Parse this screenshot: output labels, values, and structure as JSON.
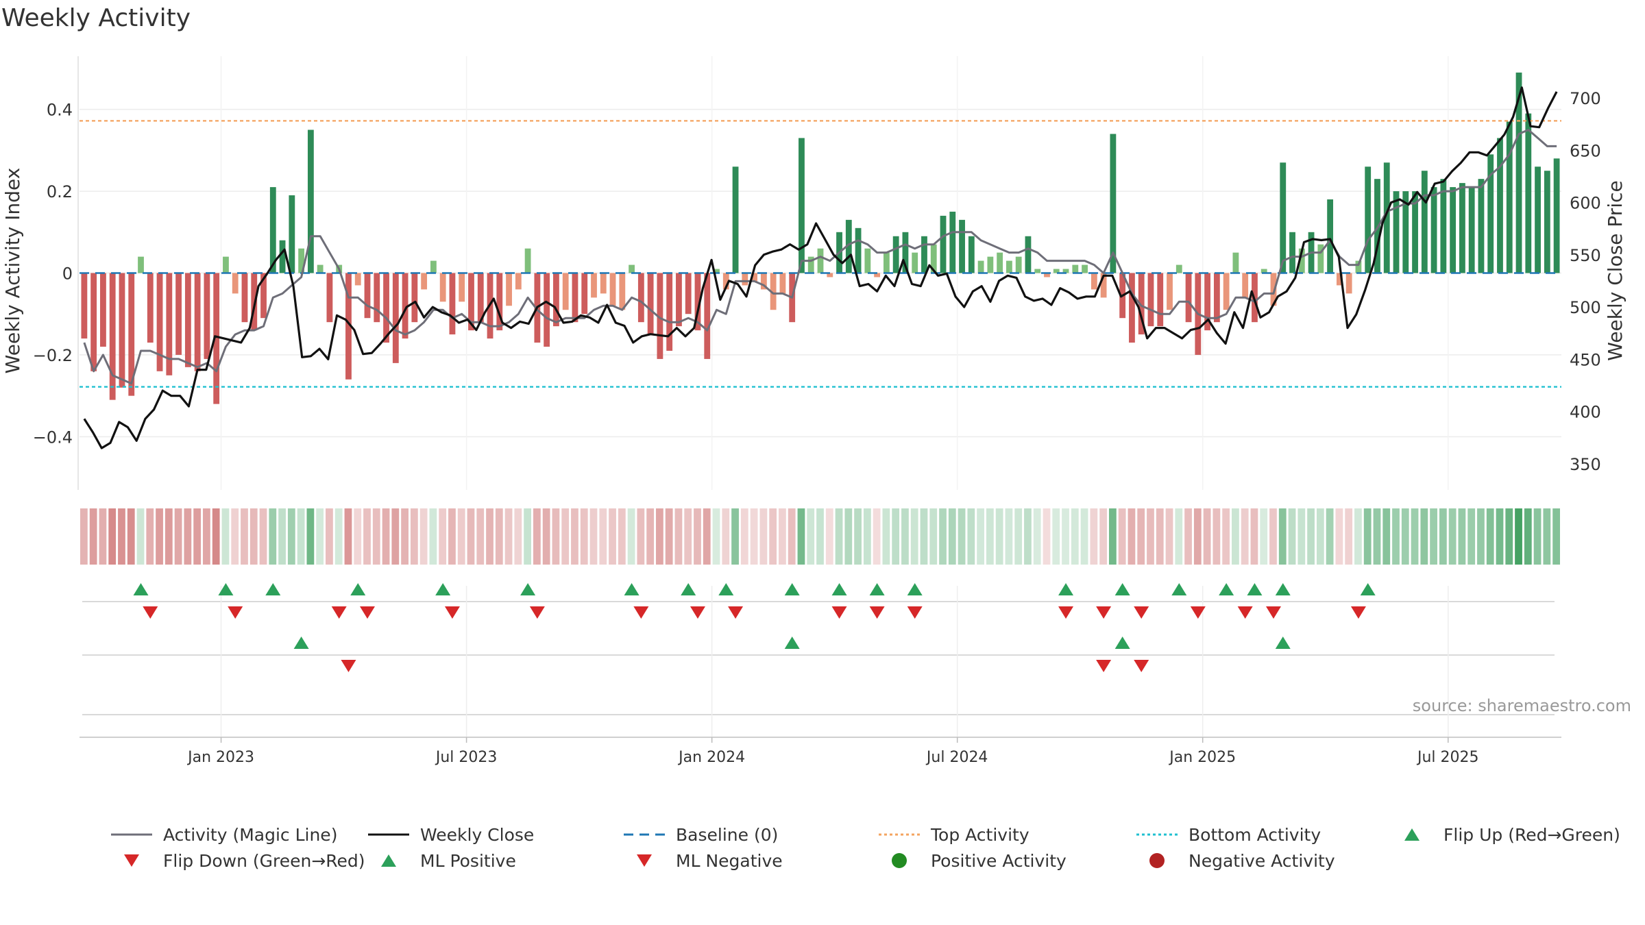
{
  "chart_data": {
    "type": "bar",
    "title": "Weekly Activity",
    "source": "source: sharemaestro.com",
    "ylabel_left": "Weekly Activity Index",
    "ylabel_right": "Weekly Close Price",
    "xlabel": "",
    "ylim_left": [
      -0.53,
      0.53
    ],
    "ylim_right": [
      325,
      740
    ],
    "yticks_left": [
      {
        "value": 0.4,
        "label": "0.4"
      },
      {
        "value": 0.2,
        "label": "0.2"
      },
      {
        "value": 0,
        "label": "0"
      },
      {
        "value": -0.2,
        "label": "−0.2"
      },
      {
        "value": -0.4,
        "label": "−0.4"
      }
    ],
    "yticks_right": [
      {
        "value": 700,
        "label": "700"
      },
      {
        "value": 650,
        "label": "650"
      },
      {
        "value": 600,
        "label": "600"
      },
      {
        "value": 550,
        "label": "550"
      },
      {
        "value": 500,
        "label": "500"
      },
      {
        "value": 450,
        "label": "450"
      },
      {
        "value": 400,
        "label": "400"
      },
      {
        "value": 350,
        "label": "350"
      }
    ],
    "x_range": [
      0,
      157
    ],
    "xticks": [
      {
        "week": 15,
        "label": "Jan 2023"
      },
      {
        "week": 41,
        "label": "Jul 2023"
      },
      {
        "week": 67,
        "label": "Jan 2024"
      },
      {
        "week": 93,
        "label": "Jul 2024"
      },
      {
        "week": 119,
        "label": "Jan 2025"
      },
      {
        "week": 145,
        "label": "Jul 2025"
      }
    ],
    "top_activity": 0.372,
    "bottom_activity": -0.278,
    "baseline": 0,
    "colors": {
      "pos_strong": "#2e8b57",
      "pos_weak": "#7fbf7b",
      "neg_strong": "#cd5c5c",
      "neg_weak": "#e9967a",
      "magic_line": "#6e6e78",
      "close_line": "#111111",
      "baseline": "#1f77b4",
      "top": "#f4a460",
      "bottom": "#20c0d0",
      "flip_up": "#2ca05a",
      "flip_down": "#d62728",
      "pos_dot": "#228b22",
      "neg_dot": "#b22222"
    },
    "series": [
      {
        "name": "Activity Index",
        "values": [
          -0.16,
          -0.24,
          -0.18,
          -0.31,
          -0.28,
          -0.3,
          0.04,
          -0.17,
          -0.24,
          -0.25,
          -0.2,
          -0.23,
          -0.24,
          -0.21,
          -0.32,
          0.04,
          -0.05,
          -0.12,
          -0.14,
          -0.11,
          0.21,
          0.08,
          0.19,
          0.06,
          0.35,
          0.02,
          -0.12,
          0.02,
          -0.26,
          -0.03,
          -0.11,
          -0.12,
          -0.17,
          -0.22,
          -0.16,
          -0.12,
          -0.04,
          0.03,
          -0.07,
          -0.15,
          -0.07,
          -0.14,
          -0.12,
          -0.16,
          -0.14,
          -0.08,
          -0.04,
          0.06,
          -0.17,
          -0.18,
          -0.13,
          -0.09,
          -0.12,
          -0.1,
          -0.06,
          -0.05,
          -0.08,
          -0.09,
          0.02,
          -0.12,
          -0.15,
          -0.21,
          -0.19,
          -0.13,
          -0.1,
          -0.14,
          -0.21,
          0.01,
          -0.04,
          0.26,
          -0.03,
          -0.02,
          -0.04,
          -0.09,
          -0.05,
          -0.12,
          0.33,
          0.04,
          0.06,
          -0.01,
          0.1,
          0.13,
          0.11,
          0.06,
          -0.01,
          0.05,
          0.09,
          0.1,
          0.05,
          0.09,
          0.07,
          0.14,
          0.15,
          0.13,
          0.09,
          0.03,
          0.04,
          0.05,
          0.03,
          0.04,
          0.09,
          0.01,
          -0.01,
          0.01,
          0.01,
          0.02,
          0.02,
          -0.04,
          -0.06,
          0.34,
          -0.11,
          -0.17,
          -0.15,
          -0.13,
          -0.13,
          -0.09,
          0.02,
          -0.12,
          -0.2,
          -0.14,
          -0.12,
          -0.09,
          0.05,
          -0.06,
          -0.12,
          0.01,
          -0.08,
          0.27,
          0.1,
          0.06,
          0.1,
          0.07,
          0.18,
          -0.03,
          -0.05,
          0.03,
          0.26,
          0.23,
          0.27,
          0.2,
          0.2,
          0.2,
          0.25,
          0.21,
          0.23,
          0.21,
          0.22,
          0.21,
          0.23,
          0.29,
          0.33,
          0.37,
          0.49,
          0.39,
          0.26,
          0.25,
          0.28
        ]
      },
      {
        "name": "Activity (Magic Line)",
        "values": [
          -0.17,
          -0.24,
          -0.2,
          -0.25,
          -0.26,
          -0.27,
          -0.19,
          -0.19,
          -0.2,
          -0.21,
          -0.21,
          -0.22,
          -0.23,
          -0.22,
          -0.24,
          -0.18,
          -0.15,
          -0.14,
          -0.14,
          -0.13,
          -0.06,
          -0.05,
          -0.03,
          -0.01,
          0.09,
          0.09,
          0.05,
          0.01,
          -0.06,
          -0.06,
          -0.08,
          -0.09,
          -0.11,
          -0.14,
          -0.15,
          -0.14,
          -0.12,
          -0.09,
          -0.09,
          -0.11,
          -0.1,
          -0.12,
          -0.12,
          -0.13,
          -0.13,
          -0.12,
          -0.1,
          -0.06,
          -0.09,
          -0.11,
          -0.12,
          -0.11,
          -0.11,
          -0.11,
          -0.09,
          -0.08,
          -0.08,
          -0.09,
          -0.06,
          -0.07,
          -0.09,
          -0.11,
          -0.12,
          -0.12,
          -0.11,
          -0.12,
          -0.14,
          -0.09,
          -0.1,
          -0.02,
          -0.02,
          -0.02,
          -0.03,
          -0.05,
          -0.05,
          -0.06,
          0.03,
          0.03,
          0.04,
          0.03,
          0.05,
          0.07,
          0.08,
          0.07,
          0.05,
          0.05,
          0.06,
          0.07,
          0.06,
          0.07,
          0.07,
          0.09,
          0.1,
          0.1,
          0.1,
          0.08,
          0.07,
          0.06,
          0.05,
          0.05,
          0.06,
          0.05,
          0.03,
          0.03,
          0.03,
          0.03,
          0.03,
          0.02,
          0.0,
          0.05,
          0.0,
          -0.05,
          -0.08,
          -0.09,
          -0.1,
          -0.1,
          -0.07,
          -0.07,
          -0.1,
          -0.11,
          -0.11,
          -0.1,
          -0.06,
          -0.06,
          -0.07,
          -0.05,
          -0.05,
          0.03,
          0.04,
          0.04,
          0.05,
          0.05,
          0.08,
          0.04,
          0.02,
          0.02,
          0.08,
          0.11,
          0.15,
          0.16,
          0.17,
          0.17,
          0.19,
          0.19,
          0.2,
          0.2,
          0.21,
          0.21,
          0.21,
          0.24,
          0.26,
          0.29,
          0.34,
          0.35,
          0.33,
          0.31,
          0.31
        ]
      },
      {
        "name": "Weekly Close",
        "values": [
          393,
          380,
          365,
          370,
          390,
          385,
          372,
          393,
          402,
          420,
          415,
          415,
          405,
          440,
          440,
          472,
          470,
          468,
          466,
          480,
          520,
          532,
          545,
          555,
          520,
          452,
          453,
          460,
          450,
          492,
          488,
          478,
          455,
          456,
          465,
          475,
          484,
          500,
          505,
          490,
          500,
          495,
          492,
          485,
          488,
          478,
          495,
          508,
          485,
          480,
          486,
          484,
          500,
          505,
          500,
          485,
          486,
          492,
          490,
          485,
          502,
          485,
          482,
          466,
          472,
          474,
          473,
          472,
          480,
          472,
          480,
          518,
          545,
          507,
          525,
          522,
          510,
          540,
          550,
          553,
          555,
          560,
          555,
          560,
          580,
          565,
          550,
          542,
          550,
          520,
          522,
          515,
          530,
          520,
          545,
          522,
          520,
          540,
          530,
          532,
          510,
          500,
          515,
          520,
          505,
          525,
          530,
          528,
          510,
          506,
          508,
          502,
          518,
          514,
          508,
          510,
          510,
          530,
          530,
          510,
          515,
          500,
          470,
          480,
          480,
          475,
          470,
          478,
          480,
          488,
          475,
          465,
          495,
          480,
          515,
          490,
          495,
          510,
          515,
          528,
          562,
          565,
          564,
          565,
          548,
          480,
          493,
          516,
          542,
          580,
          600,
          603,
          598,
          610,
          600,
          618,
          620,
          630,
          638,
          648,
          648,
          645,
          655,
          665,
          682,
          710,
          673,
          672,
          690,
          706
        ]
      }
    ],
    "heat_strip": [
      -0.16,
      -0.24,
      -0.18,
      -0.31,
      -0.28,
      -0.3,
      0.04,
      -0.17,
      -0.24,
      -0.25,
      -0.2,
      -0.23,
      -0.24,
      -0.21,
      -0.32,
      0.04,
      -0.05,
      -0.12,
      -0.14,
      -0.11,
      0.21,
      0.08,
      0.19,
      0.06,
      0.35,
      0.02,
      -0.12,
      0.02,
      -0.26,
      -0.03,
      -0.11,
      -0.12,
      -0.17,
      -0.22,
      -0.16,
      -0.12,
      -0.04,
      0.03,
      -0.07,
      -0.15,
      -0.07,
      -0.14,
      -0.12,
      -0.16,
      -0.14,
      -0.08,
      -0.04,
      0.06,
      -0.17,
      -0.18,
      -0.13,
      -0.09,
      -0.12,
      -0.1,
      -0.06,
      -0.05,
      -0.08,
      -0.09,
      0.02,
      -0.12,
      -0.15,
      -0.21,
      -0.19,
      -0.13,
      -0.1,
      -0.14,
      -0.21,
      0.01,
      -0.04,
      0.26,
      -0.03,
      -0.02,
      -0.04,
      -0.09,
      -0.05,
      -0.12,
      0.33,
      0.04,
      0.06,
      -0.01,
      0.1,
      0.13,
      0.11,
      0.06,
      -0.01,
      0.05,
      0.09,
      0.1,
      0.05,
      0.09,
      0.07,
      0.14,
      0.15,
      0.13,
      0.09,
      0.03,
      0.04,
      0.05,
      0.03,
      0.04,
      0.09,
      0.01,
      -0.01,
      0.01,
      0.01,
      0.02,
      0.02,
      -0.04,
      -0.06,
      0.34,
      -0.11,
      -0.17,
      -0.15,
      -0.13,
      -0.13,
      -0.09,
      0.02,
      -0.12,
      -0.2,
      -0.14,
      -0.12,
      -0.09,
      0.05,
      -0.06,
      -0.12,
      0.01,
      -0.08,
      0.27,
      0.1,
      0.06,
      0.1,
      0.07,
      0.18,
      -0.03,
      -0.05,
      0.03,
      0.26,
      0.23,
      0.27,
      0.2,
      0.2,
      0.2,
      0.25,
      0.21,
      0.23,
      0.21,
      0.22,
      0.21,
      0.23,
      0.29,
      0.33,
      0.37,
      0.49,
      0.39,
      0.26,
      0.25,
      0.28
    ],
    "flip_up_weeks": [
      6,
      15,
      20,
      29,
      38,
      47,
      58,
      64,
      68,
      75,
      80,
      84,
      88,
      104,
      110,
      116,
      121,
      124,
      127,
      136
    ],
    "flip_down_weeks": [
      7,
      16,
      27,
      30,
      39,
      48,
      59,
      65,
      69,
      80,
      84,
      88,
      104,
      108,
      112,
      118,
      123,
      126,
      135
    ],
    "ml_positive_weeks": [
      23,
      75,
      110,
      127
    ],
    "ml_negative_weeks": [
      28,
      108,
      112
    ],
    "legend": [
      {
        "label": "Activity (Magic Line)",
        "marker": "line",
        "color": "#6e6e78"
      },
      {
        "label": "Weekly Close",
        "marker": "line",
        "color": "#111111"
      },
      {
        "label": "Baseline (0)",
        "marker": "dash",
        "color": "#1f77b4"
      },
      {
        "label": "Top Activity",
        "marker": "dot-line",
        "color": "#f4a460"
      },
      {
        "label": "Bottom Activity",
        "marker": "dot-line",
        "color": "#20c0d0"
      },
      {
        "label": "Flip Up (Red→Green)",
        "marker": "triangle-up",
        "color": "#2ca05a"
      },
      {
        "label": "Flip Down (Green→Red)",
        "marker": "triangle-down",
        "color": "#d62728"
      },
      {
        "label": "ML Positive",
        "marker": "triangle-up",
        "color": "#2ca05a"
      },
      {
        "label": "ML Negative",
        "marker": "triangle-down",
        "color": "#d62728"
      },
      {
        "label": "Positive Activity",
        "marker": "circle",
        "color": "#228b22"
      },
      {
        "label": "Negative Activity",
        "marker": "circle",
        "color": "#b22222"
      }
    ]
  }
}
